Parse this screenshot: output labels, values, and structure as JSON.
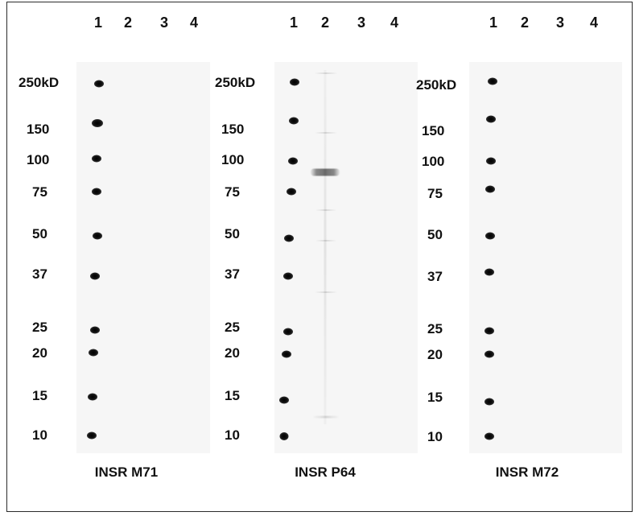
{
  "lane_labels": [
    "1",
    "2",
    "3",
    "4"
  ],
  "panels": [
    {
      "name": "INSR M71",
      "markers": [
        "250kD",
        "150",
        "100",
        "75",
        "50",
        "37",
        "25",
        "20",
        "15",
        "10"
      ]
    },
    {
      "name": "INSR P64",
      "markers": [
        "250kD",
        "150",
        "100",
        "75",
        "50",
        "37",
        "25",
        "20",
        "15",
        "10"
      ]
    },
    {
      "name": "INSR M72",
      "markers": [
        "250kD",
        "150",
        "100",
        "75",
        "50",
        "37",
        "25",
        "20",
        "15",
        "10"
      ]
    }
  ]
}
